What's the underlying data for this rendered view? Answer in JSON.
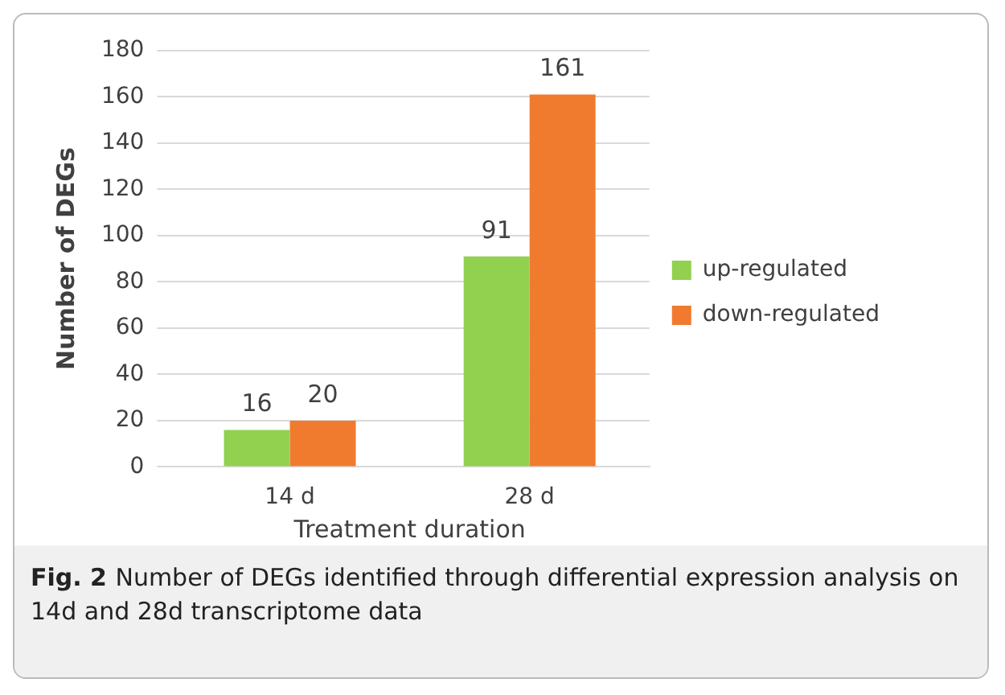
{
  "chart_data": {
    "type": "bar",
    "xlabel": "Treatment duration",
    "ylabel": "Number of DEGs",
    "categories": [
      "14 d",
      "28 d"
    ],
    "series": [
      {
        "name": "up-regulated",
        "color": "#92d050",
        "values": [
          16,
          91
        ]
      },
      {
        "name": "down-regulated",
        "color": "#f07b2e",
        "values": [
          20,
          161
        ]
      }
    ],
    "ylim": [
      0,
      180
    ],
    "yticks": [
      0,
      20,
      40,
      60,
      80,
      100,
      120,
      140,
      160,
      180
    ],
    "grid": "y",
    "legend": "right",
    "data_labels": true,
    "annotations": [
      "Fig. 2",
      "Number of DEGs identified through differential expression analysis on 14d and 28d transcriptome data"
    ]
  }
}
